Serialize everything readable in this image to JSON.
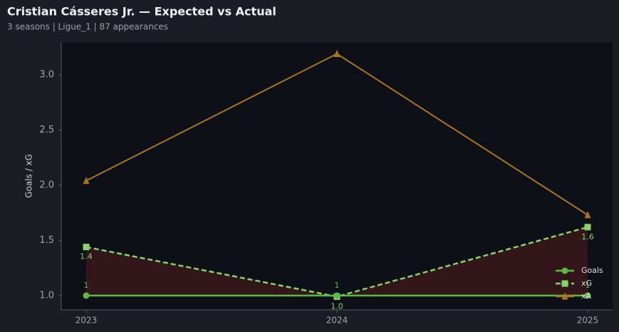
{
  "chart_data": {
    "type": "line",
    "title": "Cristian Cásseres Jr. — Expected vs Actual",
    "subtitle": "3 seasons | Ligue_1 | 87 appearances",
    "y_label": "Goals / xG",
    "categories": [
      "2023",
      "2024",
      "2025"
    ],
    "series": [
      {
        "name": "Goals",
        "color": "#5cb948",
        "marker": "circle",
        "dash": false,
        "values": [
          1,
          1,
          1
        ]
      },
      {
        "name": "xG",
        "color": "#86d46a",
        "marker": "square",
        "dash": true,
        "values": [
          1.44,
          0.99,
          1.62
        ],
        "value_labels": [
          "1.4",
          "1.0",
          "1.6"
        ]
      },
      {
        "name": "xA",
        "color": "#a8761c",
        "marker": "triangle",
        "dash": false,
        "values": [
          2.04,
          3.19,
          1.73
        ]
      }
    ],
    "ylim": [
      0.87,
      3.29
    ],
    "yticks": [
      {
        "value": 1,
        "label": "1.0"
      },
      1.5,
      {
        "value": 2,
        "label": "2.0"
      },
      2.5,
      {
        "value": 3,
        "label": "3.0"
      }
    ],
    "legend": "lower right"
  }
}
